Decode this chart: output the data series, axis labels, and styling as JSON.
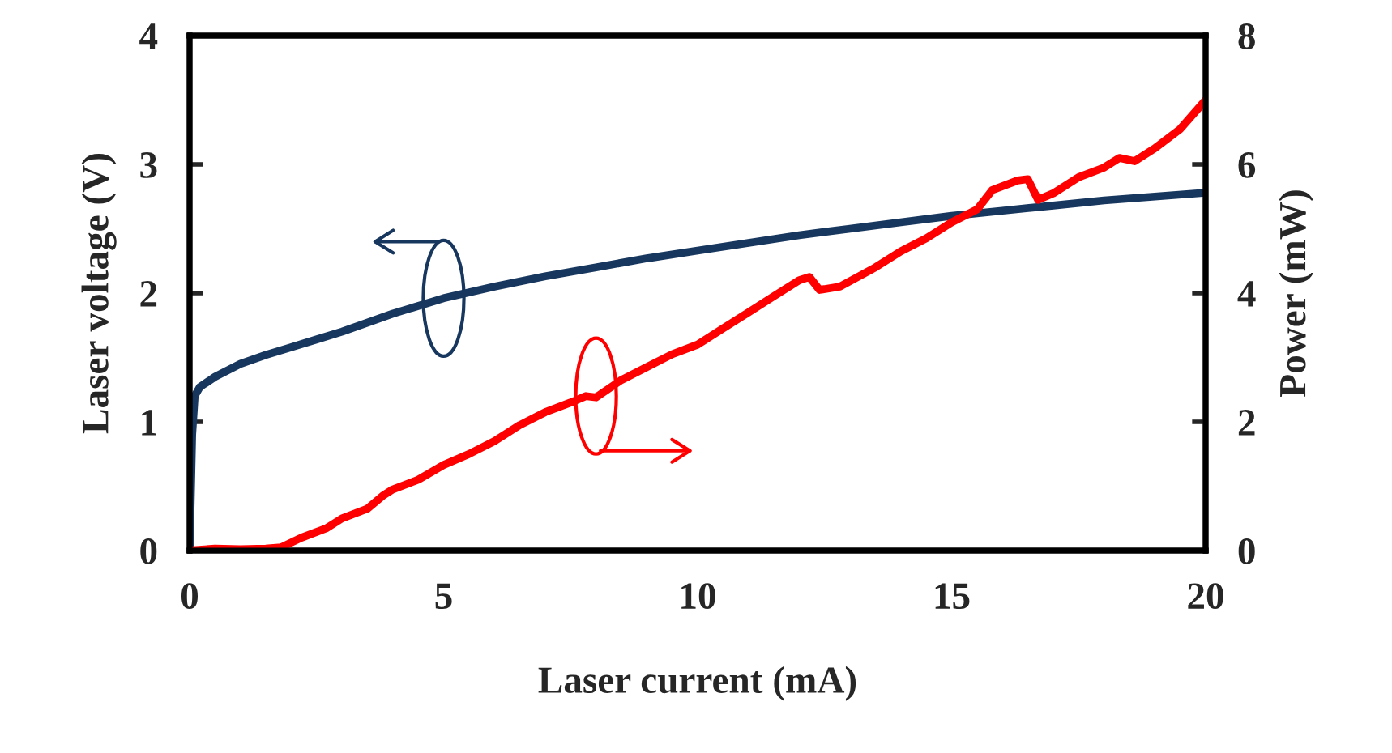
{
  "chart_data": {
    "type": "line",
    "xlabel": "Laser current (mA)",
    "ylabel": "Laser voltage (V)",
    "y2label": "Power (mW)",
    "xlim": [
      0,
      20
    ],
    "xticks": [
      0,
      5,
      10,
      15,
      20
    ],
    "ylim": [
      0,
      4
    ],
    "yticks": [
      0,
      1,
      2,
      3,
      4
    ],
    "y2lim": [
      0,
      8
    ],
    "y2ticks": [
      0,
      2,
      4,
      6,
      8
    ],
    "grid": false,
    "legend": false,
    "marker": "none",
    "line_style": "solid",
    "series": [
      {
        "color": "#17375e",
        "x": [
          0,
          0.05,
          0.1,
          0.2,
          0.5,
          1,
          1.5,
          2,
          2.5,
          3,
          4,
          5,
          6,
          7,
          8,
          9,
          10,
          11,
          12,
          13,
          14,
          15,
          16,
          17,
          18,
          19,
          20
        ],
        "values": [
          0,
          0.9,
          1.2,
          1.27,
          1.35,
          1.45,
          1.52,
          1.58,
          1.64,
          1.7,
          1.84,
          1.96,
          2.05,
          2.13,
          2.2,
          2.27,
          2.33,
          2.39,
          2.45,
          2.5,
          2.55,
          2.6,
          2.64,
          2.68,
          2.72,
          2.75,
          2.78
        ]
      },
      {
        "color": "#ff0000",
        "axis": "y2",
        "x": [
          0,
          0.5,
          1,
          1.5,
          1.8,
          2.2,
          2.7,
          3,
          3.5,
          3.8,
          4,
          4.5,
          5,
          5.5,
          6,
          6.5,
          7,
          7.5,
          7.8,
          8,
          8.5,
          9,
          9.5,
          10,
          10.5,
          11,
          11.5,
          12,
          12.2,
          12.4,
          12.8,
          13.5,
          14,
          14.5,
          15,
          15.5,
          15.8,
          16.3,
          16.5,
          16.7,
          17,
          17.5,
          18,
          18.3,
          18.6,
          19,
          19.5,
          20
        ],
        "values": [
          0,
          0.03,
          0.02,
          0.03,
          0.05,
          0.2,
          0.35,
          0.5,
          0.65,
          0.85,
          0.95,
          1.1,
          1.33,
          1.5,
          1.7,
          1.95,
          2.15,
          2.3,
          2.4,
          2.38,
          2.65,
          2.85,
          3.05,
          3.2,
          3.45,
          3.7,
          3.95,
          4.2,
          4.25,
          4.05,
          4.1,
          4.4,
          4.65,
          4.85,
          5.1,
          5.3,
          5.6,
          5.75,
          5.77,
          5.45,
          5.55,
          5.8,
          5.95,
          6.1,
          6.05,
          6.25,
          6.55,
          7.0
        ]
      }
    ]
  }
}
